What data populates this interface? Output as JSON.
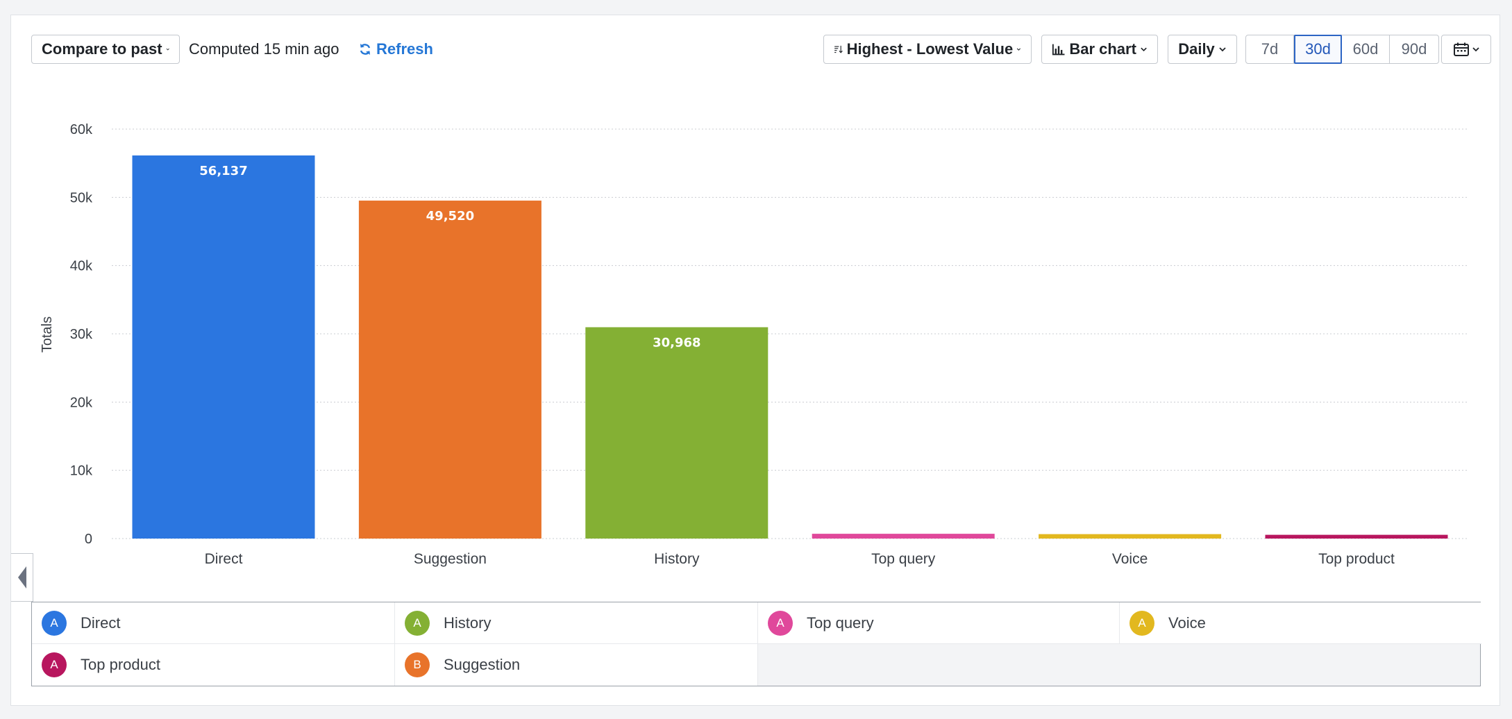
{
  "toolbar": {
    "compare_label": "Compare to past",
    "computed_text": "Computed 15 min ago",
    "refresh_label": "Refresh",
    "sort_label": "Highest - Lowest Value",
    "chart_type_label": "Bar chart",
    "interval_label": "Daily",
    "ranges": [
      "7d",
      "30d",
      "60d",
      "90d"
    ],
    "active_range": "30d"
  },
  "chart_data": {
    "type": "bar",
    "ylabel": "Totals",
    "xlabel": "",
    "ylim": [
      0,
      60000
    ],
    "yticks": [
      "0",
      "10k",
      "20k",
      "30k",
      "40k",
      "50k",
      "60k"
    ],
    "grid": true,
    "categories": [
      "Direct",
      "Suggestion",
      "History",
      "Top query",
      "Voice",
      "Top product"
    ],
    "values": [
      56137,
      49520,
      30968,
      700,
      650,
      550
    ],
    "value_labels": [
      "56,137",
      "49,520",
      "30,968",
      "",
      "",
      ""
    ],
    "colors": [
      "#2b76e0",
      "#e8732a",
      "#84b034",
      "#e0489b",
      "#e2b81f",
      "#b8165e"
    ]
  },
  "legend": {
    "items": [
      {
        "badge": "A",
        "name": "Direct",
        "color": "#2b76e0"
      },
      {
        "badge": "A",
        "name": "History",
        "color": "#84b034"
      },
      {
        "badge": "A",
        "name": "Top query",
        "color": "#e0489b"
      },
      {
        "badge": "A",
        "name": "Voice",
        "color": "#e2b81f"
      },
      {
        "badge": "A",
        "name": "Top product",
        "color": "#b8165e"
      },
      {
        "badge": "B",
        "name": "Suggestion",
        "color": "#e8732a"
      }
    ]
  }
}
